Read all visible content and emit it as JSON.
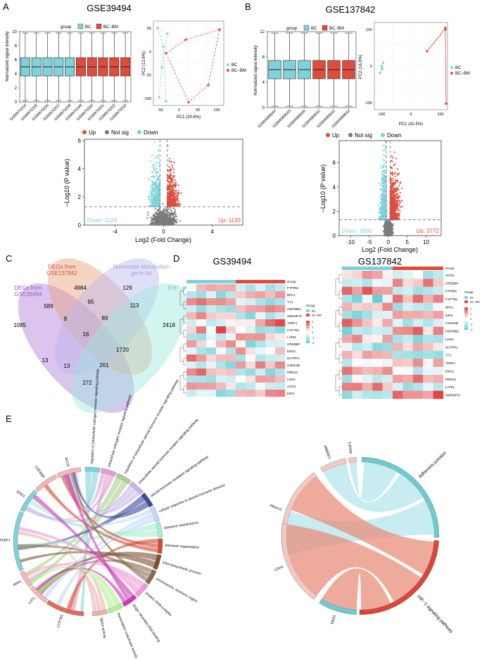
{
  "panels": {
    "A": {
      "letter": "A",
      "title": "GSE39494",
      "boxplot": {
        "legend_title": "group",
        "groups": [
          "BC",
          "BC−BM"
        ],
        "ylabel": "Normalized signal intensity",
        "yticks": [
          "0",
          "2",
          "4",
          "6",
          "8",
          "10"
        ],
        "samples": [
          "GSM970204",
          "GSM970205",
          "GSM970206",
          "GSM970207",
          "GSM970208",
          "GSM970199",
          "GSM970200",
          "GSM970201",
          "GSM970202",
          "GSM970203"
        ]
      },
      "pca": {
        "xlabel": "PC1 (20.6%)",
        "ylabel": "PC2 (12.6%)",
        "xticks": [
          "-50",
          "0",
          "50",
          "100"
        ],
        "yticks": [
          "-100",
          "-50",
          "0",
          "50"
        ],
        "legend": [
          "BC",
          "BC−BM"
        ]
      },
      "volcano": {
        "legend": [
          "Up",
          "Not sig",
          "Down"
        ],
        "ylabel": "−Log10 (P value)",
        "xlabel": "Log2 (Fold Change)",
        "xticks": [
          "-4",
          "0",
          "4"
        ],
        "yticks": [
          "0",
          "2",
          "4",
          "6"
        ],
        "down_label": "Down: 1124",
        "up_label": "Up: 1133"
      }
    },
    "B": {
      "letter": "B",
      "title": "GSE137842",
      "boxplot": {
        "legend_title": "group",
        "groups": [
          "BC",
          "BC−BM"
        ],
        "ylabel": "Normalized signal intensity",
        "yticks": [
          "0",
          "4",
          "8",
          "12"
        ],
        "samples": [
          "GSM4089644",
          "GSM4089645",
          "GSM4089646",
          "GSM4089641",
          "GSM4089642",
          "GSM4089643"
        ]
      },
      "pca": {
        "xlabel": "PC1 (42.5%)",
        "ylabel": "PC2 (16.9%)",
        "xticks": [
          "-100",
          "0",
          "100"
        ],
        "yticks": [
          "-100",
          "0",
          "100"
        ],
        "legend": [
          "BC",
          "BC−BM"
        ]
      },
      "volcano": {
        "legend": [
          "Up",
          "Not sig",
          "Down"
        ],
        "ylabel": "−Log10 (P value)",
        "xlabel": "Log2 (Fold Change)",
        "xticks": [
          "-10",
          "-5",
          "0",
          "5",
          "10"
        ],
        "yticks": [
          "0",
          "2",
          "4",
          "6"
        ],
        "down_label": "Down: 3990",
        "up_label": "Up: 3772"
      }
    },
    "C": {
      "letter": "C",
      "set_labels": [
        "DEGs from GSE137842",
        "Nucleotide Metabolism gene list",
        "DEGs from GSE39494",
        "EMT gene list"
      ],
      "counts": [
        "4984",
        "129",
        "589",
        "95",
        "113",
        "1085",
        "8",
        "89",
        "2418",
        "16",
        "13",
        "1720",
        "13",
        "261",
        "272"
      ]
    },
    "D": {
      "letter": "D",
      "left_title": "GS39494",
      "right_title": "GS137842",
      "group_label": "Group",
      "legend_groups": [
        "BC",
        "BC−BM"
      ],
      "scale_ticks": [
        "2",
        "1",
        "0",
        "-1",
        "-2"
      ],
      "left_genes": [
        "PTPRM",
        "RPA1",
        "YY1",
        "HSP90B1",
        "SNRNP70",
        "TERF1",
        "CYP7B1",
        "LAT81",
        "CREBBP",
        "ENO1",
        "DCTPP1",
        "CSNK2B",
        "PRDX4",
        "LDHA",
        "ACO2",
        "E2F1"
      ],
      "right_genes": [
        "ACO2",
        "CREBBP",
        "PTPRM",
        "CYP7B1",
        "RPA1",
        "E2F1",
        "CSNK2B",
        "HSP90B1",
        "LDHA",
        "DCTPP1",
        "YY1",
        "TERF1",
        "ENO1",
        "PRDX4",
        "LAT81",
        "SNRNP70"
      ]
    },
    "E": {
      "letter": "E",
      "left_terms": [
        "regulation of intracellular estrogen receptor signaling pathway",
        "intracellular estrogen receptor signaling pathway",
        "regulation of intracellular steroid hormone receptor signaling pathway",
        "intracellular steroid hormone receptor signaling pathway",
        "steroid hormone mediated signaling pathway",
        "cellular response to steroid hormone stimulus",
        "telomere maintenance",
        "telomere organization",
        "DNA biosynthetic process",
        "chromosome, telomeric region",
        "protein−DNA complex",
        "single−stranded DNA binding",
        "transcription coactivator activity",
        "ligase activity"
      ],
      "left_genes": [
        "CYP7B1",
        "LAT1",
        "RPA1",
        "TERF1",
        "ENO1",
        "CREBBP",
        "ACO2"
      ],
      "right_genes": [
        "BDNF3",
        "CREBBP",
        "PTPRM",
        "LDHA",
        "ENO1"
      ],
      "right_terms": [
        "Adherens junction",
        "HIF−1 signaling pathway"
      ]
    }
  }
}
